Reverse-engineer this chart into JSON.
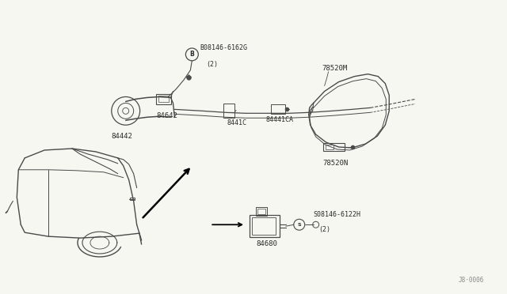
{
  "bg_color": "#f7f7f2",
  "line_color": "#4a4a4a",
  "text_color": "#2a2a2a",
  "fig_width": 6.4,
  "fig_height": 3.72,
  "dpi": 100,
  "labels": {
    "bolt_top_label": "B08146-6162G",
    "bolt_top_qty": "(2)",
    "part_84642": "84642",
    "part_84442": "84442",
    "part_8441C": "8441C",
    "part_84441CA": "84441CA",
    "part_78520M": "78520M",
    "part_78520N": "78520N",
    "part_84680": "84680",
    "bolt_bottom_label": "S08146-6122H",
    "bolt_bottom_qty": "(2)",
    "ref": "J8·0006"
  }
}
